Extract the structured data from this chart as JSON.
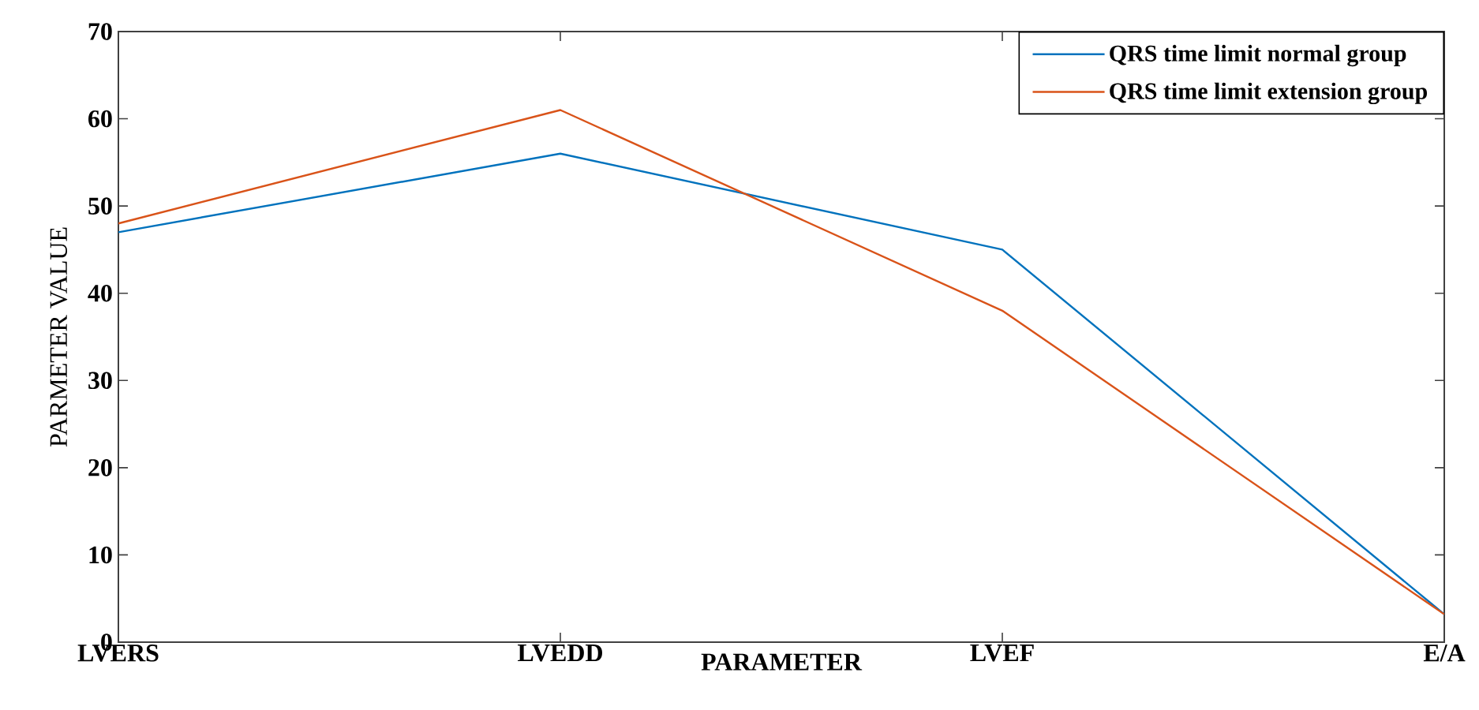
{
  "chart_data": {
    "type": "line",
    "xlabel": "PARAMETER",
    "ylabel": "PARMETER VALUE",
    "categories": [
      "LVERS",
      "LVEDD",
      "LVEF",
      "E/A"
    ],
    "series": [
      {
        "name": "QRS time limit normal group",
        "color": "#0072bd",
        "values": [
          47,
          56,
          45,
          3.2
        ]
      },
      {
        "name": "QRS time limit extension group",
        "color": "#d95319",
        "values": [
          48,
          61,
          38,
          3.2
        ]
      }
    ],
    "ylim": [
      0,
      70
    ],
    "yticks": [
      0,
      10,
      20,
      30,
      40,
      50,
      60,
      70
    ],
    "legend": "top right",
    "grid": false,
    "marker": "none",
    "line_style": "solid"
  }
}
